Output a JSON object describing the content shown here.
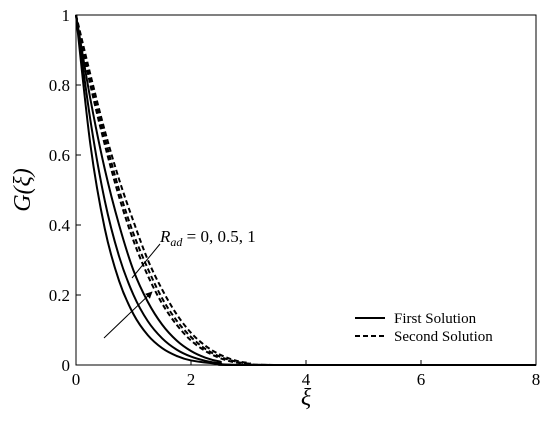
{
  "chart_data": {
    "type": "line",
    "xlabel": "ξ",
    "ylabel": "G(ξ)",
    "xlim": [
      0,
      8
    ],
    "ylim": [
      0,
      1
    ],
    "xticks": [
      "0",
      "2",
      "4",
      "6",
      "8"
    ],
    "yticks": [
      "0",
      "0.2",
      "0.4",
      "0.6",
      "0.8",
      "1"
    ],
    "grid": false,
    "legend": {
      "placement": "bottom-right",
      "entries": [
        {
          "label": "First Solution",
          "style": "solid"
        },
        {
          "label": "Second Solution",
          "style": "dashed"
        }
      ]
    },
    "annotation": {
      "symbol": "R",
      "subscript": "ad",
      "text": " = 0, 0.5, 1"
    },
    "series": [
      {
        "solution": "first",
        "rad": 0,
        "style": "solid",
        "x": [
          0,
          0.25,
          0.5,
          0.75,
          1.0,
          1.25,
          1.5,
          1.75,
          2.0,
          2.5,
          3.0,
          8
        ],
        "y": [
          1,
          0.63,
          0.39,
          0.24,
          0.145,
          0.085,
          0.048,
          0.026,
          0.013,
          0.003,
          0.0,
          0.0
        ]
      },
      {
        "solution": "first",
        "rad": 0.5,
        "style": "solid",
        "x": [
          0,
          0.25,
          0.5,
          0.75,
          1.0,
          1.25,
          1.5,
          1.75,
          2.0,
          2.25,
          2.5,
          3.0,
          8
        ],
        "y": [
          1,
          0.7,
          0.47,
          0.31,
          0.2,
          0.125,
          0.076,
          0.044,
          0.024,
          0.012,
          0.005,
          0.0,
          0.0
        ]
      },
      {
        "solution": "first",
        "rad": 1,
        "style": "solid",
        "x": [
          0,
          0.25,
          0.5,
          0.75,
          1.0,
          1.25,
          1.5,
          1.75,
          2.0,
          2.25,
          2.5,
          3.0,
          8
        ],
        "y": [
          1,
          0.76,
          0.56,
          0.4,
          0.27,
          0.18,
          0.115,
          0.07,
          0.04,
          0.021,
          0.01,
          0.0,
          0.0
        ]
      },
      {
        "solution": "second",
        "rad": 0,
        "style": "dashed",
        "x": [
          0,
          0.25,
          0.5,
          0.75,
          1.0,
          1.25,
          1.5,
          1.75,
          2.0,
          2.25,
          2.5,
          2.75,
          3.0,
          3.5,
          8
        ],
        "y": [
          1,
          0.8,
          0.63,
          0.48,
          0.355,
          0.255,
          0.175,
          0.115,
          0.07,
          0.04,
          0.02,
          0.008,
          0.003,
          0.0,
          0.0
        ]
      },
      {
        "solution": "second",
        "rad": 0.5,
        "style": "dashed",
        "x": [
          0,
          0.25,
          0.5,
          0.75,
          1.0,
          1.25,
          1.5,
          1.75,
          2.0,
          2.25,
          2.5,
          2.75,
          3.0,
          3.5,
          8
        ],
        "y": [
          1,
          0.81,
          0.65,
          0.5,
          0.375,
          0.275,
          0.19,
          0.127,
          0.08,
          0.046,
          0.024,
          0.011,
          0.004,
          0.0,
          0.0
        ]
      },
      {
        "solution": "second",
        "rad": 1,
        "style": "dashed",
        "x": [
          0,
          0.25,
          0.5,
          0.75,
          1.0,
          1.25,
          1.5,
          1.75,
          2.0,
          2.25,
          2.5,
          2.75,
          3.0,
          3.5,
          8
        ],
        "y": [
          1,
          0.83,
          0.67,
          0.53,
          0.41,
          0.3,
          0.215,
          0.145,
          0.092,
          0.055,
          0.03,
          0.014,
          0.006,
          0.0,
          0.0
        ]
      }
    ]
  }
}
